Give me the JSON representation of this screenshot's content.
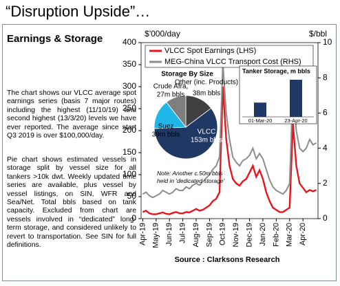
{
  "page": {
    "title": "“Disruption Upside”…",
    "heading": "Earnings & Storage",
    "paragraphs": [
      "The chart shows our VLCC average spot earnings series (basis 7 major routes) including the highest (11/10/19) and second highest (13/3/20) levels we have ever reported. The average since start Q3 2019 is over $100,000/day.",
      "Pie chart shows estimated vessels in storage split by vessel size for all tankers >10k dwt. Weekly updated time series are available, plus vessel by vessel listings, on SIN, WFR and Sea/Net. Total bbls based on tank capacity. Excluded from chart are vessels involved in “dedicated” long-term storage, and considered unlikely to revert to transportation. See SIN for full definitions."
    ],
    "source": "Source : Clarksons Research"
  },
  "chart_data": [
    {
      "type": "line",
      "ylabel": "$'000/day",
      "y2label": "$/bbl",
      "categories": [
        "Apr-19",
        null,
        null,
        null,
        "May-19",
        null,
        null,
        null,
        "Jun-19",
        null,
        null,
        null,
        "Jul-19",
        null,
        null,
        null,
        "Aug-19",
        null,
        null,
        null,
        "Sep-19",
        null,
        null,
        null,
        "Oct-19",
        null,
        null,
        null,
        "Nov-19",
        null,
        null,
        null,
        "Dec-19",
        null,
        null,
        null,
        "Jan-20",
        null,
        null,
        null,
        "Feb-20",
        null,
        null,
        null,
        "Mar-20",
        null,
        null,
        null,
        "Apr-20",
        null,
        null,
        null,
        null
      ],
      "series": [
        {
          "name": "VLCC Spot Earnings (LHS)",
          "color": "#e8141c",
          "values": [
            15,
            18,
            12,
            10,
            10,
            12,
            14,
            11,
            10,
            13,
            15,
            12,
            12,
            15,
            14,
            18,
            22,
            18,
            20,
            25,
            30,
            40,
            45,
            60,
            300,
            180,
            120,
            90,
            80,
            75,
            85,
            90,
            105,
            120,
            95,
            110,
            90,
            60,
            40,
            25,
            20,
            15,
            15,
            20,
            25,
            215,
            120,
            80,
            70,
            60,
            65,
            62,
            65
          ]
        },
        {
          "name": "MEG-China VLCC Transport Cost (RHS)",
          "color": "#8c8c8c",
          "axis": "y2",
          "values": [
            1.4,
            1.5,
            1.3,
            1.2,
            1.3,
            1.4,
            1.6,
            1.5,
            1.4,
            1.5,
            1.7,
            1.6,
            1.6,
            1.8,
            1.7,
            1.9,
            2.0,
            1.9,
            2.1,
            2.3,
            2.5,
            2.8,
            3.0,
            3.5,
            8.8,
            6.0,
            4.5,
            3.5,
            3.2,
            3.0,
            3.3,
            3.4,
            3.6,
            4.0,
            3.4,
            3.7,
            3.4,
            2.8,
            2.2,
            1.8,
            1.6,
            1.5,
            1.4,
            1.6,
            2.0,
            7.6,
            5.0,
            4.0,
            3.8,
            4.0,
            4.5,
            4.2,
            4.3
          ]
        }
      ],
      "ylim": [
        0,
        400
      ],
      "yticks": [
        0,
        50,
        100,
        150,
        200,
        250,
        300,
        350,
        400
      ],
      "y2lim": [
        0,
        10
      ],
      "y2ticks": [
        0,
        2,
        4,
        6,
        8,
        10
      ],
      "grid": false,
      "legend": "top-left"
    },
    {
      "type": "pie",
      "title": "Storage By Size",
      "categories": [
        "Other (inc. Products)",
        "VLCC",
        "Suez",
        "Crude Afra,"
      ],
      "values": [
        38,
        153,
        39,
        27
      ],
      "value_labels": [
        "38m bbls",
        "153m bbls",
        "39m bbls",
        "27m bbls"
      ],
      "colors": [
        "#404040",
        "#1f3864",
        "#21b6e8",
        "#7f7f7f"
      ],
      "note": "Note: Another c.50m bbls held in 'dedicated storage'"
    },
    {
      "type": "bar",
      "title": "Tanker Storage, m bbls",
      "categories": [
        "01-Mar-20",
        "23-Apr-20"
      ],
      "values": [
        100,
        260
      ],
      "color": "#1f3864"
    }
  ]
}
